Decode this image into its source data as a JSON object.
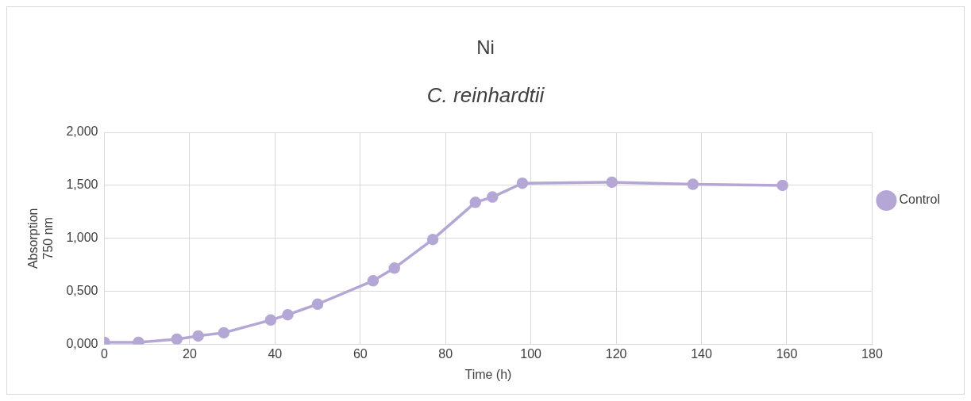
{
  "chart_data": {
    "type": "line",
    "title": "Ni",
    "subtitle": "C. reinhardtii",
    "xlabel": "Time (h)",
    "ylabel": "Absorption\n750 nm",
    "xlim": [
      0,
      180
    ],
    "xticks": [
      0,
      20,
      40,
      60,
      80,
      100,
      120,
      140,
      160,
      180
    ],
    "ylim": [
      0,
      2
    ],
    "yticks": [
      {
        "value": 0,
        "label": "0,000"
      },
      {
        "value": 0.5,
        "label": "0,500"
      },
      {
        "value": 1,
        "label": "1,000"
      },
      {
        "value": 1.5,
        "label": "1,500"
      },
      {
        "value": 2,
        "label": "2,000"
      }
    ],
    "grid": true,
    "legend": "right",
    "marker": "circle",
    "line_style": "solid",
    "series": [
      {
        "name": "Control",
        "color": "#b4a7d6",
        "x": [
          0,
          8,
          17,
          22,
          28,
          39,
          43,
          50,
          63,
          68,
          77,
          87,
          91,
          98,
          119,
          138,
          159
        ],
        "values": [
          0.02,
          0.02,
          0.05,
          0.08,
          0.11,
          0.23,
          0.28,
          0.38,
          0.6,
          0.72,
          0.99,
          1.34,
          1.39,
          1.52,
          1.53,
          1.51,
          1.5
        ]
      }
    ]
  }
}
